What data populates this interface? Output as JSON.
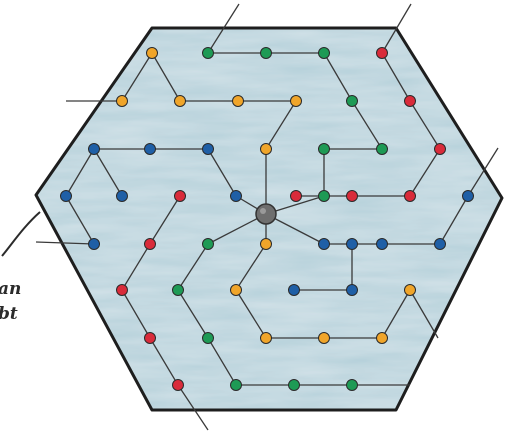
{
  "caption": {
    "line1": "an",
    "line2": "bt"
  },
  "colors": {
    "background": "#ffffff",
    "hexagon_fill": "#b4d0da",
    "hexagon_stroke": "#1e1e1e",
    "path_line": "#3a3a3a",
    "center": "#6e6e6e",
    "red": "#d92b3a",
    "orange": "#f0a52a",
    "green": "#1e9a55",
    "blue": "#1f5fa6"
  },
  "diagram": {
    "shape": "hexagon",
    "center_icon": "gray-hub-node"
  }
}
